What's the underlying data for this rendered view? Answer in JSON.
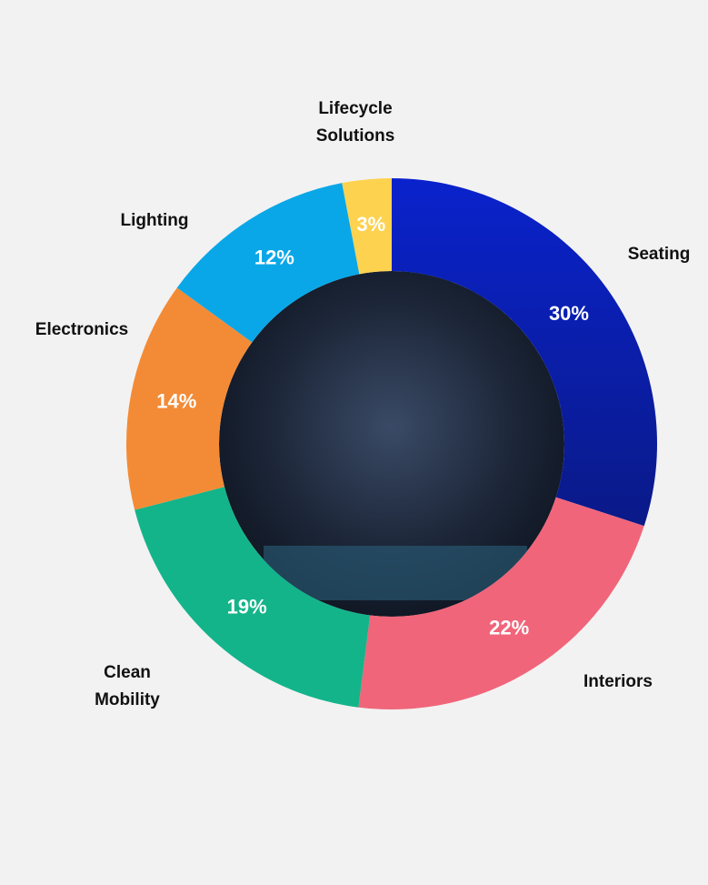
{
  "chart_data": {
    "type": "donut",
    "categories": [
      "Seating",
      "Interiors",
      "Clean Mobility",
      "Electronics",
      "Lighting",
      "Lifecycle Solutions"
    ],
    "values": [
      30,
      22,
      19,
      14,
      12,
      3
    ],
    "value_labels": [
      "30%",
      "22%",
      "19%",
      "14%",
      "12%",
      "3%"
    ],
    "colors": [
      "#0a20c0",
      "#f0657a",
      "#14b48a",
      "#f38b36",
      "#0aa7e8",
      "#fdd24f"
    ]
  }
}
